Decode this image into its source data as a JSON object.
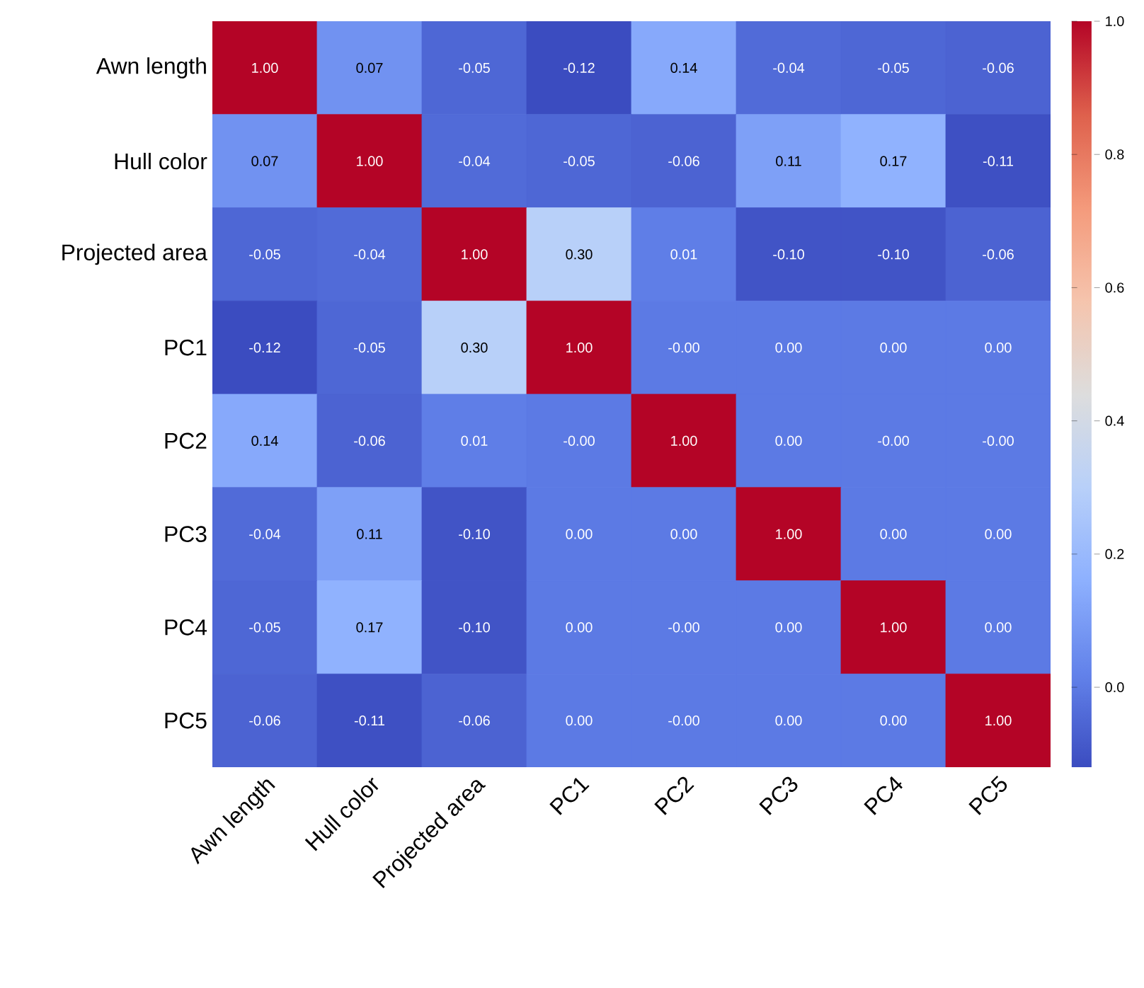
{
  "chart_data": {
    "type": "heatmap",
    "categories": [
      "Awn length",
      "Hull color",
      "Projected area",
      "PC1",
      "PC2",
      "PC3",
      "PC4",
      "PC5"
    ],
    "y_categories": [
      "Awn length",
      "Hull color",
      "Projected area",
      "PC1",
      "PC2",
      "PC3",
      "PC4",
      "PC5"
    ],
    "cells": [
      [
        1.0,
        0.07,
        -0.05,
        -0.12,
        0.14,
        -0.04,
        -0.05,
        -0.06
      ],
      [
        0.07,
        1.0,
        -0.04,
        -0.05,
        -0.06,
        0.11,
        0.17,
        -0.11
      ],
      [
        -0.05,
        -0.04,
        1.0,
        0.3,
        0.01,
        -0.1,
        -0.1,
        -0.06
      ],
      [
        -0.12,
        -0.05,
        0.3,
        1.0,
        -0.0,
        0.0,
        0.0,
        0.0
      ],
      [
        0.14,
        -0.06,
        0.01,
        -0.0,
        1.0,
        0.0,
        -0.0,
        -0.0
      ],
      [
        -0.04,
        0.11,
        -0.1,
        0.0,
        0.0,
        1.0,
        0.0,
        0.0
      ],
      [
        -0.05,
        0.17,
        -0.1,
        0.0,
        -0.0,
        0.0,
        1.0,
        0.0
      ],
      [
        -0.06,
        -0.11,
        -0.06,
        0.0,
        -0.0,
        0.0,
        0.0,
        1.0
      ]
    ],
    "cell_labels": [
      [
        "1.00",
        "0.07",
        "-0.05",
        "-0.12",
        "0.14",
        "-0.04",
        "-0.05",
        "-0.06"
      ],
      [
        "0.07",
        "1.00",
        "-0.04",
        "-0.05",
        "-0.06",
        "0.11",
        "0.17",
        "-0.11"
      ],
      [
        "-0.05",
        "-0.04",
        "1.00",
        "0.30",
        "0.01",
        "-0.10",
        "-0.10",
        "-0.06"
      ],
      [
        "-0.12",
        "-0.05",
        "0.30",
        "1.00",
        "-0.00",
        "0.00",
        "0.00",
        "0.00"
      ],
      [
        "0.14",
        "-0.06",
        "0.01",
        "-0.00",
        "1.00",
        "0.00",
        "-0.00",
        "-0.00"
      ],
      [
        "-0.04",
        "0.11",
        "-0.10",
        "0.00",
        "0.00",
        "1.00",
        "0.00",
        "0.00"
      ],
      [
        "-0.05",
        "0.17",
        "-0.10",
        "0.00",
        "-0.00",
        "0.00",
        "1.00",
        "0.00"
      ],
      [
        "-0.06",
        "-0.11",
        "-0.06",
        "0.00",
        "-0.00",
        "0.00",
        "0.00",
        "1.00"
      ]
    ],
    "clim": [
      -0.12,
      1.0
    ],
    "cticks": [
      {
        "value": 0.0,
        "label": "0.0"
      },
      {
        "value": 0.2,
        "label": "0.2"
      },
      {
        "value": 0.4,
        "label": "0.4"
      },
      {
        "value": 0.6,
        "label": "0.6"
      },
      {
        "value": 0.8,
        "label": "0.8"
      },
      {
        "value": 1.0,
        "label": "1.0"
      }
    ]
  }
}
